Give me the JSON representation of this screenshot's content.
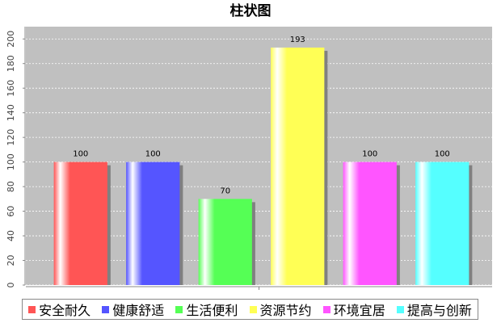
{
  "chart_data": {
    "type": "bar",
    "title": "柱状图",
    "categories": [
      null
    ],
    "series": [
      {
        "name": "安全耐久",
        "color": "#ff5555",
        "values": [
          100
        ]
      },
      {
        "name": "健康舒适",
        "color": "#5555ff",
        "values": [
          100
        ]
      },
      {
        "name": "生活便利",
        "color": "#55ff55",
        "values": [
          70
        ]
      },
      {
        "name": "资源节约",
        "color": "#ffff55",
        "values": [
          193
        ]
      },
      {
        "name": "环境宜居",
        "color": "#ff55ff",
        "values": [
          100
        ]
      },
      {
        "name": "提高与创新",
        "color": "#55ffff",
        "values": [
          100
        ]
      }
    ],
    "ylim": [
      0,
      210
    ],
    "yticks": [
      0,
      20,
      40,
      60,
      80,
      100,
      120,
      140,
      160,
      180,
      200
    ],
    "grid": true
  }
}
